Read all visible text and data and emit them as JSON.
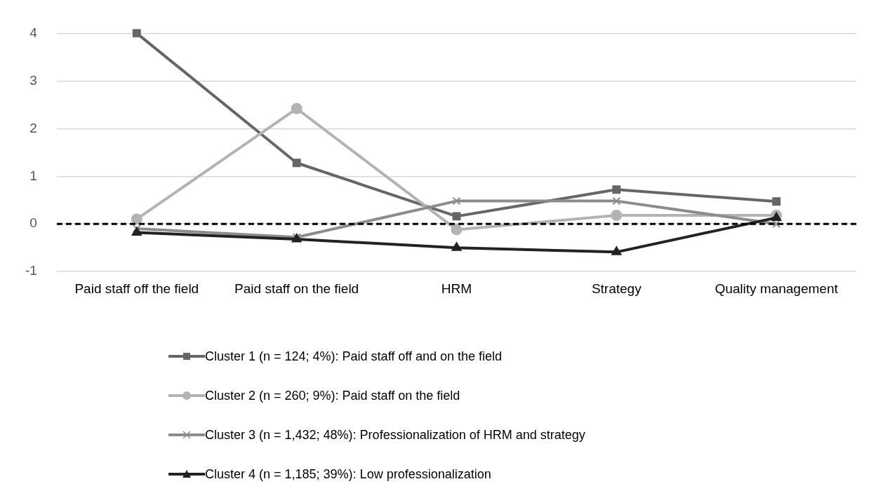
{
  "chart_data": {
    "type": "line",
    "categories": [
      "Paid staff off the field",
      "Paid staff on the field",
      "HRM",
      "Strategy",
      "Quality management"
    ],
    "series": [
      {
        "name": "Cluster 1 (n = 124; 4%): Paid staff off and on the field",
        "color": "#666666",
        "marker": "square",
        "values": [
          4.0,
          1.28,
          0.16,
          0.72,
          0.47
        ]
      },
      {
        "name": "Cluster 2 (n = 260; 9%): Paid staff on the field",
        "color": "#b3b3b3",
        "marker": "circle",
        "values": [
          0.1,
          2.42,
          -0.12,
          0.18,
          0.18
        ]
      },
      {
        "name": "Cluster 3 (n = 1,432; 48%): Professionalization of HRM and strategy",
        "color": "#8c8c8c",
        "marker": "cross",
        "values": [
          -0.1,
          -0.28,
          0.48,
          0.48,
          0.0
        ]
      },
      {
        "name": "Cluster 4 (n = 1,185; 39%): Low professionalization",
        "color": "#222222",
        "marker": "triangle",
        "values": [
          -0.18,
          -0.32,
          -0.5,
          -0.59,
          0.13
        ]
      }
    ],
    "ylim": [
      -1,
      4
    ],
    "yticks": [
      -1,
      0,
      1,
      2,
      3,
      4
    ],
    "grid": "y",
    "legend": "bottom",
    "line_style": "solid",
    "ref_lines": [
      {
        "axis": "y",
        "value": 0,
        "color": "#000000",
        "line_style": "dashed"
      }
    ]
  }
}
